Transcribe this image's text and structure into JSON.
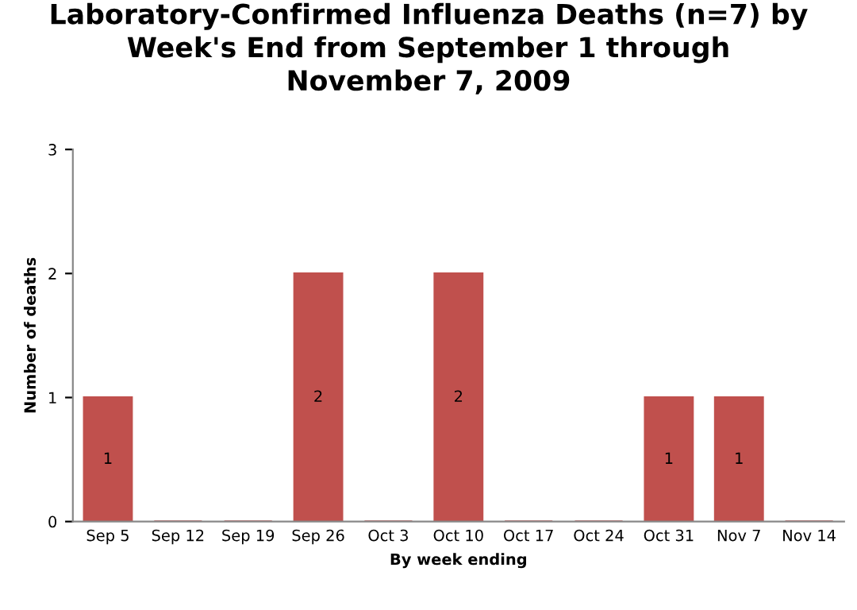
{
  "chart_data": {
    "type": "bar",
    "title": "Laboratory-Confirmed Influenza Deaths (n=7) by\nWeek's End from September 1 through\nNovember 7, 2009",
    "xlabel": "By week ending",
    "ylabel": "Number of deaths",
    "categories": [
      "Sep 5",
      "Sep 12",
      "Sep 19",
      "Sep 26",
      "Oct 3",
      "Oct 10",
      "Oct 17",
      "Oct 24",
      "Oct 31",
      "Nov 7",
      "Nov 14"
    ],
    "values": [
      1,
      0,
      0,
      2,
      0,
      2,
      0,
      0,
      1,
      1,
      0
    ],
    "value_labels": [
      "1",
      null,
      null,
      "2",
      null,
      "2",
      null,
      null,
      "1",
      "1",
      null
    ],
    "color": "#c0504d",
    "ylim": [
      0,
      3
    ],
    "yticks": [
      0,
      1,
      2,
      3
    ],
    "grid": false
  }
}
